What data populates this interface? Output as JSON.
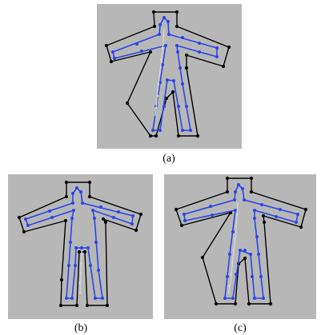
{
  "captions": {
    "a": "(a)",
    "b": "(b)",
    "c": "(c)"
  },
  "colors": {
    "background": "#b7b7b7",
    "outer_hull": "#000000",
    "skeleton_outline": "#2a44e8",
    "medial_axis": "#d8d8d8"
  }
}
